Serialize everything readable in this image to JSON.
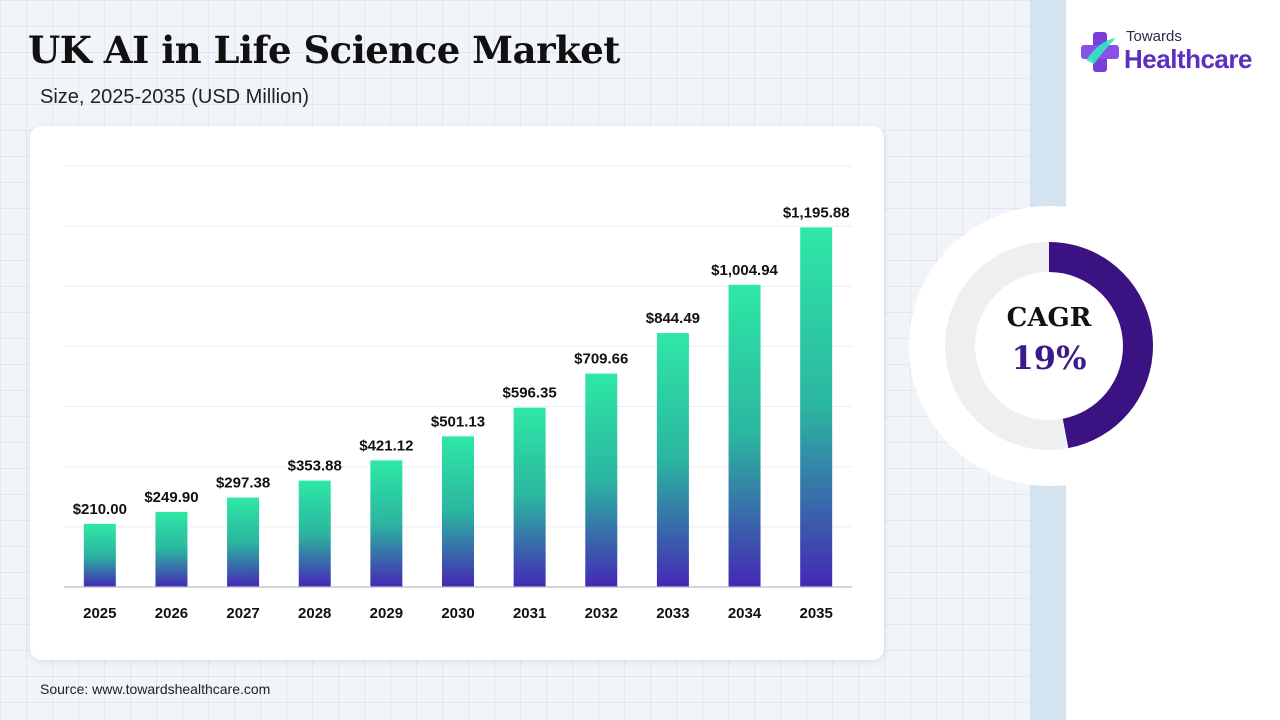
{
  "title": "UK AI in Life Science Market",
  "subtitle": "Size, 2025-2035 (USD Million)",
  "logo": {
    "top": "Towards",
    "main": "Healthcare"
  },
  "cagr": {
    "label": "CAGR",
    "value": "19%",
    "fraction": 0.19
  },
  "source": "Source: www.towardshealthcare.com",
  "colors": {
    "bar_top": "#2ee8a6",
    "bar_bottom": "#4428b5",
    "donut_fill": "#3b1282",
    "donut_track": "#efeff1",
    "logo_purple": "#5b2fbf"
  },
  "chart_data": {
    "type": "bar",
    "categories": [
      "2025",
      "2026",
      "2027",
      "2028",
      "2029",
      "2030",
      "2031",
      "2032",
      "2033",
      "2034",
      "2035"
    ],
    "values": [
      210.0,
      249.9,
      297.38,
      353.88,
      421.12,
      501.13,
      596.35,
      709.66,
      844.49,
      1004.94,
      1195.88
    ],
    "data_labels": [
      "$210.00",
      "$249.90",
      "$297.38",
      "$353.88",
      "$421.12",
      "$501.13",
      "$596.35",
      "$709.66",
      "$844.49",
      "$1,004.94",
      "$1,195.88"
    ],
    "title": "",
    "xlabel": "",
    "ylabel": "",
    "ylim": [
      0,
      1400
    ],
    "grid": true,
    "legend": "none"
  }
}
